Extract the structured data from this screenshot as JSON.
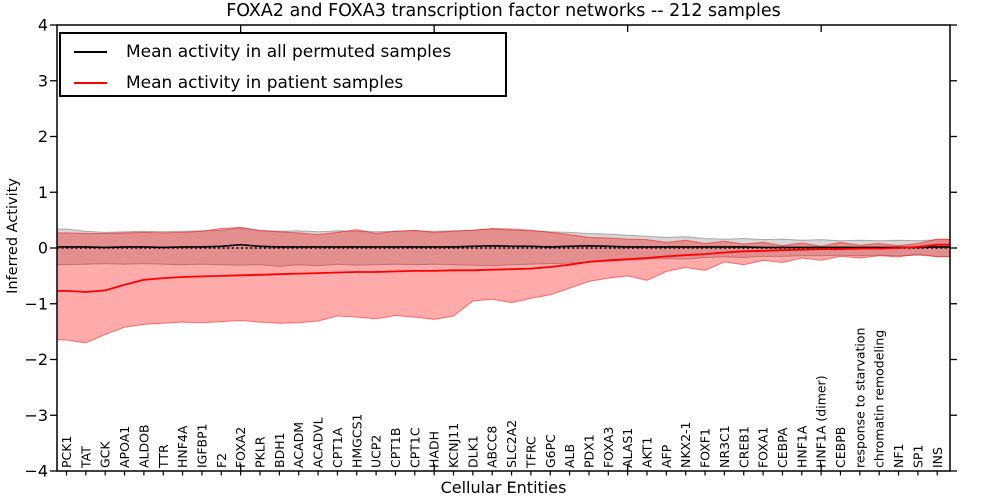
{
  "chart_data": {
    "type": "line",
    "title": "FOXA2 and FOXA3 transcription factor networks -- 212 samples",
    "xlabel": "Cellular Entities",
    "ylabel": "Inferred Activity",
    "ylim": [
      -4,
      4
    ],
    "grid": false,
    "zero_line": true,
    "legend_position": "upper left",
    "ytick_values": [
      4,
      3,
      2,
      1,
      0,
      -1,
      -2,
      -3,
      -4
    ],
    "ytick_labels": [
      "4",
      "3",
      "2",
      "1",
      "0",
      "−1",
      "−2",
      "−3",
      "−4"
    ],
    "xtick_indices": [
      9,
      19,
      29,
      39
    ],
    "categories": [
      "PCK1",
      "TAT",
      "GCK",
      "APOA1",
      "ALDOB",
      "TTR",
      "HNF4A",
      "IGFBP1",
      "F2",
      "FOXA2",
      "PKLR",
      "BDH1",
      "ACADM",
      "ACADVL",
      "CPT1A",
      "HMGCS1",
      "UCP2",
      "CPT1B",
      "CPT1C",
      "HADH",
      "KCNJ11",
      "DLK1",
      "ABCC8",
      "SLC2A2",
      "TFRC",
      "G6PC",
      "ALB",
      "PDX1",
      "FOXA3",
      "ALAS1",
      "AKT1",
      "AFP",
      "NKX2-1",
      "FOXF1",
      "NR3C1",
      "CREB1",
      "FOXA1",
      "CEBPA",
      "HNF1A",
      "HNF1A (dimer)",
      "CEBPB",
      "response to starvation",
      "chromatin remodeling",
      "NF1",
      "SP1",
      "INS"
    ],
    "series": [
      {
        "name": "Mean activity in all permuted samples",
        "color": "#000000",
        "line_width": 1.6,
        "values": [
          0.02,
          0.02,
          0.01,
          0.02,
          0.02,
          0.01,
          0.02,
          0.02,
          0.03,
          0.06,
          0.03,
          0.02,
          0.02,
          0.02,
          0.02,
          0.02,
          0.02,
          0.02,
          0.02,
          0.02,
          0.02,
          0.03,
          0.04,
          0.03,
          0.03,
          0.02,
          0.03,
          0.04,
          0.03,
          0.02,
          0.02,
          0.02,
          0.02,
          0.02,
          0.02,
          0.02,
          0.01,
          0.01,
          0.01,
          0.01,
          0.01,
          0.01,
          0.01,
          0.01,
          0.01,
          0.02
        ]
      },
      {
        "name": "Mean activity in patient samples",
        "color": "#ff0000",
        "line_width": 1.8,
        "values": [
          -0.77,
          -0.79,
          -0.76,
          -0.66,
          -0.57,
          -0.54,
          -0.52,
          -0.51,
          -0.5,
          -0.49,
          -0.48,
          -0.47,
          -0.46,
          -0.45,
          -0.44,
          -0.43,
          -0.43,
          -0.42,
          -0.41,
          -0.41,
          -0.4,
          -0.4,
          -0.39,
          -0.38,
          -0.37,
          -0.34,
          -0.3,
          -0.25,
          -0.22,
          -0.2,
          -0.18,
          -0.15,
          -0.13,
          -0.11,
          -0.08,
          -0.06,
          -0.05,
          -0.04,
          -0.03,
          -0.02,
          -0.02,
          -0.01,
          -0.01,
          0.0,
          0.02,
          0.06
        ]
      }
    ],
    "bands": [
      {
        "name": "permuted-std-band",
        "fill": "rgba(0,0,0,0.16)",
        "edge": "rgba(0,0,0,0.28)",
        "upper": [
          0.34,
          0.3,
          0.28,
          0.29,
          0.3,
          0.29,
          0.3,
          0.31,
          0.32,
          0.36,
          0.32,
          0.3,
          0.31,
          0.29,
          0.31,
          0.3,
          0.29,
          0.3,
          0.31,
          0.3,
          0.31,
          0.32,
          0.34,
          0.32,
          0.31,
          0.29,
          0.28,
          0.26,
          0.25,
          0.23,
          0.21,
          0.19,
          0.2,
          0.17,
          0.16,
          0.17,
          0.15,
          0.16,
          0.14,
          0.15,
          0.13,
          0.14,
          0.13,
          0.14,
          0.13,
          0.15
        ],
        "lower": [
          -0.3,
          -0.29,
          -0.28,
          -0.29,
          -0.28,
          -0.29,
          -0.3,
          -0.29,
          -0.3,
          -0.31,
          -0.3,
          -0.33,
          -0.3,
          -0.32,
          -0.29,
          -0.31,
          -0.3,
          -0.29,
          -0.3,
          -0.29,
          -0.3,
          -0.31,
          -0.32,
          -0.3,
          -0.29,
          -0.28,
          -0.27,
          -0.25,
          -0.24,
          -0.22,
          -0.2,
          -0.19,
          -0.2,
          -0.17,
          -0.16,
          -0.17,
          -0.15,
          -0.15,
          -0.14,
          -0.14,
          -0.13,
          -0.14,
          -0.13,
          -0.14,
          -0.13,
          -0.15
        ]
      },
      {
        "name": "patient-std-band",
        "fill": "rgba(255,0,0,0.33)",
        "edge": "rgba(255,0,0,0.5)",
        "upper": [
          0.27,
          0.26,
          0.26,
          0.27,
          0.28,
          0.27,
          0.28,
          0.3,
          0.35,
          0.37,
          0.31,
          0.29,
          0.27,
          0.24,
          0.28,
          0.33,
          0.26,
          0.3,
          0.32,
          0.28,
          0.3,
          0.32,
          0.35,
          0.34,
          0.32,
          0.28,
          0.24,
          0.19,
          0.18,
          0.16,
          0.15,
          0.1,
          0.14,
          0.08,
          0.12,
          0.07,
          0.1,
          0.04,
          0.09,
          0.03,
          0.1,
          0.05,
          0.08,
          0.04,
          0.08,
          0.16
        ],
        "lower": [
          -1.65,
          -1.7,
          -1.55,
          -1.42,
          -1.37,
          -1.35,
          -1.33,
          -1.34,
          -1.32,
          -1.3,
          -1.33,
          -1.35,
          -1.34,
          -1.31,
          -1.22,
          -1.24,
          -1.27,
          -1.21,
          -1.24,
          -1.28,
          -1.22,
          -0.95,
          -0.92,
          -0.98,
          -0.9,
          -0.84,
          -0.72,
          -0.6,
          -0.54,
          -0.5,
          -0.58,
          -0.42,
          -0.35,
          -0.4,
          -0.25,
          -0.3,
          -0.22,
          -0.26,
          -0.18,
          -0.22,
          -0.15,
          -0.18,
          -0.14,
          -0.16,
          -0.11,
          -0.16
        ]
      }
    ]
  }
}
